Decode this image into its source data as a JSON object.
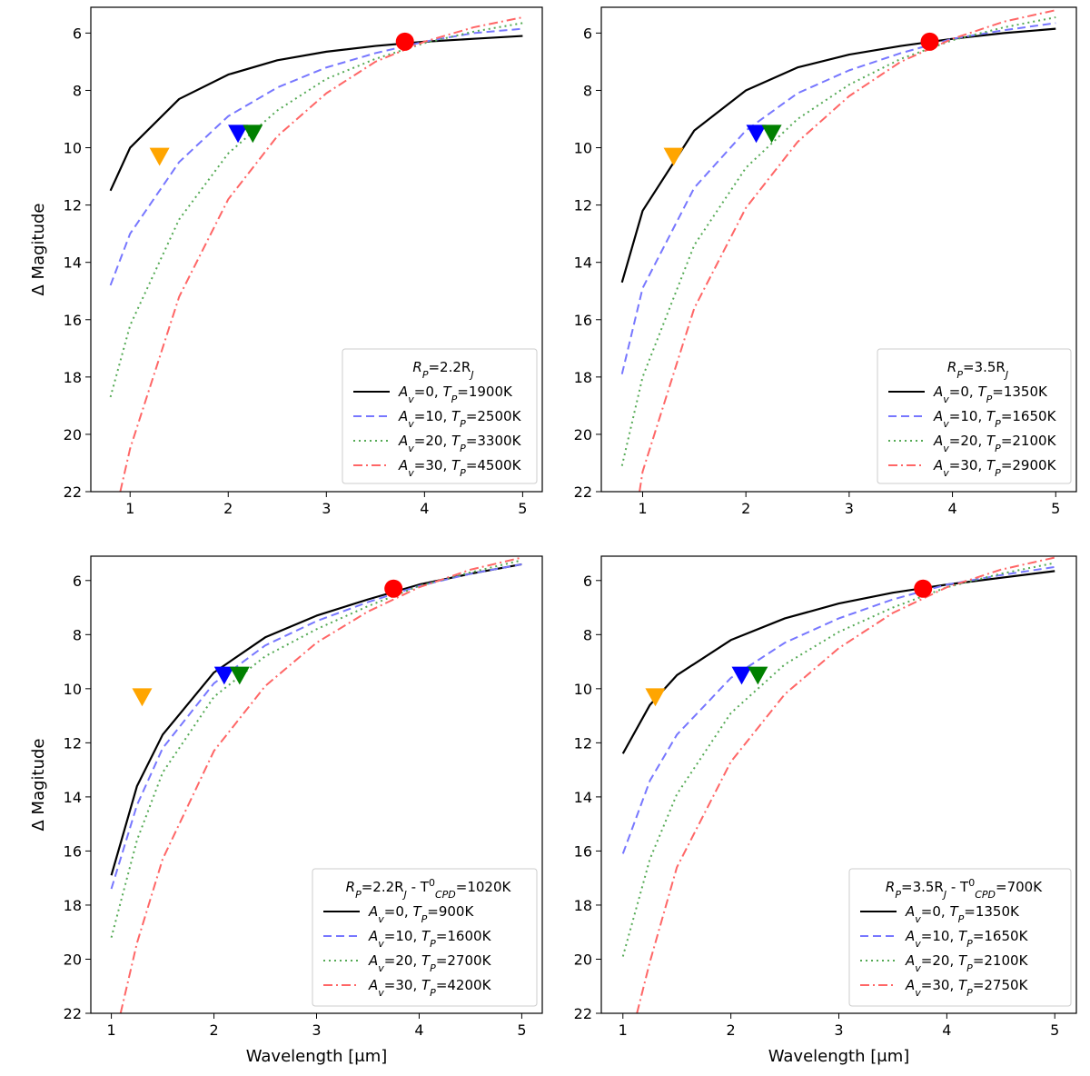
{
  "chart_data": [
    {
      "type": "line",
      "xlabel": "",
      "ylabel": "Δ Magitude",
      "xlim": [
        0.6,
        5.2
      ],
      "ylim": [
        22,
        5.1
      ],
      "xticks": [
        1,
        2,
        3,
        4,
        5
      ],
      "yticks": [
        6,
        8,
        10,
        12,
        14,
        16,
        18,
        20,
        22
      ],
      "legend_title": {
        "base": "R",
        "sub": "P",
        "mid": "=2.2R",
        "sub2": "J",
        "tail": ""
      },
      "series": [
        {
          "name": "Av=0, TP=1900K",
          "av": "0",
          "tp": "1900",
          "color": "#000000",
          "style": "solid",
          "x": [
            0.8,
            1.0,
            1.5,
            2.0,
            2.5,
            3.0,
            3.5,
            4.0,
            4.5,
            5.0
          ],
          "y": [
            11.5,
            10.0,
            8.3,
            7.45,
            6.95,
            6.65,
            6.45,
            6.3,
            6.2,
            6.1
          ]
        },
        {
          "name": "Av=10, TP=2500K",
          "av": "10",
          "tp": "2500",
          "color": "#7777ff",
          "style": "dashed",
          "x": [
            0.8,
            1.0,
            1.5,
            2.0,
            2.5,
            3.0,
            3.5,
            4.0,
            4.5,
            5.0
          ],
          "y": [
            14.8,
            13.0,
            10.5,
            8.9,
            7.9,
            7.2,
            6.7,
            6.3,
            6.0,
            5.85
          ]
        },
        {
          "name": "Av=20, TP=3300K",
          "av": "20",
          "tp": "3300",
          "color": "#55aa55",
          "style": "dotted",
          "x": [
            0.8,
            1.0,
            1.5,
            2.0,
            2.5,
            3.0,
            3.5,
            4.0,
            4.5,
            5.0
          ],
          "y": [
            18.7,
            16.2,
            12.5,
            10.2,
            8.7,
            7.6,
            6.9,
            6.35,
            5.95,
            5.65
          ]
        },
        {
          "name": "Av=30, TP=4500K",
          "av": "30",
          "tp": "4500",
          "color": "#ff6666",
          "style": "dashdot",
          "x": [
            0.9,
            1.0,
            1.5,
            2.0,
            2.5,
            3.0,
            3.5,
            4.0,
            4.5,
            5.0
          ],
          "y": [
            22.0,
            20.5,
            15.2,
            11.8,
            9.6,
            8.1,
            7.0,
            6.3,
            5.8,
            5.45
          ]
        }
      ],
      "markers": [
        {
          "name": "orange-upper-limit",
          "shape": "triangle-down",
          "x": 1.3,
          "y": 10.3,
          "color": "#ffa500"
        },
        {
          "name": "blue-upper-limit",
          "shape": "triangle-down",
          "x": 2.1,
          "y": 9.5,
          "color": "#0000ff"
        },
        {
          "name": "green-upper-limit",
          "shape": "triangle-down",
          "x": 2.25,
          "y": 9.5,
          "color": "#008000"
        },
        {
          "name": "red-detection",
          "shape": "circle",
          "x": 3.8,
          "y": 6.3,
          "color": "#ff0000"
        }
      ]
    },
    {
      "type": "line",
      "xlabel": "",
      "ylabel": "",
      "xlim": [
        0.6,
        5.2
      ],
      "ylim": [
        22,
        5.1
      ],
      "xticks": [
        1,
        2,
        3,
        4,
        5
      ],
      "yticks": [
        6,
        8,
        10,
        12,
        14,
        16,
        18,
        20,
        22
      ],
      "legend_title": {
        "base": "R",
        "sub": "P",
        "mid": "=3.5R",
        "sub2": "J",
        "tail": ""
      },
      "series": [
        {
          "name": "Av=0, TP=1350K",
          "av": "0",
          "tp": "1350",
          "color": "#000000",
          "style": "solid",
          "x": [
            0.8,
            1.0,
            1.5,
            2.0,
            2.5,
            3.0,
            3.5,
            4.0,
            4.5,
            5.0
          ],
          "y": [
            14.7,
            12.2,
            9.4,
            8.0,
            7.2,
            6.75,
            6.45,
            6.2,
            6.0,
            5.85
          ]
        },
        {
          "name": "Av=10, TP=1650K",
          "av": "10",
          "tp": "1650",
          "color": "#7777ff",
          "style": "dashed",
          "x": [
            0.8,
            1.0,
            1.5,
            2.0,
            2.5,
            3.0,
            3.5,
            4.0,
            4.5,
            5.0
          ],
          "y": [
            17.9,
            14.9,
            11.4,
            9.4,
            8.1,
            7.3,
            6.7,
            6.2,
            5.9,
            5.65
          ]
        },
        {
          "name": "Av=20, TP=2100K",
          "av": "20",
          "tp": "2100",
          "color": "#55aa55",
          "style": "dotted",
          "x": [
            0.8,
            1.0,
            1.5,
            2.0,
            2.5,
            3.0,
            3.5,
            4.0,
            4.5,
            5.0
          ],
          "y": [
            21.1,
            18.0,
            13.4,
            10.7,
            9.0,
            7.8,
            6.9,
            6.25,
            5.8,
            5.45
          ]
        },
        {
          "name": "Av=30, TP=2900K",
          "av": "30",
          "tp": "2900",
          "color": "#ff6666",
          "style": "dashdot",
          "x": [
            0.97,
            1.0,
            1.5,
            2.0,
            2.5,
            3.0,
            3.5,
            4.0,
            4.5,
            5.0
          ],
          "y": [
            22.0,
            21.3,
            15.6,
            12.1,
            9.8,
            8.2,
            7.0,
            6.2,
            5.6,
            5.2
          ]
        }
      ],
      "markers": [
        {
          "name": "orange-upper-limit",
          "shape": "triangle-down",
          "x": 1.3,
          "y": 10.3,
          "color": "#ffa500"
        },
        {
          "name": "blue-upper-limit",
          "shape": "triangle-down",
          "x": 2.1,
          "y": 9.5,
          "color": "#0000ff"
        },
        {
          "name": "green-upper-limit",
          "shape": "triangle-down",
          "x": 2.25,
          "y": 9.5,
          "color": "#008000"
        },
        {
          "name": "red-detection",
          "shape": "circle",
          "x": 3.78,
          "y": 6.3,
          "color": "#ff0000"
        }
      ]
    },
    {
      "type": "line",
      "xlabel": "Wavelength [μm]",
      "ylabel": "Δ Magitude",
      "xlim": [
        0.8,
        5.2
      ],
      "ylim": [
        22,
        5.1
      ],
      "xticks": [
        1,
        2,
        3,
        4,
        5
      ],
      "yticks": [
        6,
        8,
        10,
        12,
        14,
        16,
        18,
        20,
        22
      ],
      "legend_title": {
        "base": "R",
        "sub": "P",
        "mid": "=2.2R",
        "sub2": "J",
        "tail": " - T",
        "sup3": "0",
        "sub3": "CPD",
        "end": "=1020K"
      },
      "series": [
        {
          "name": "Av=0, TP=900K",
          "av": "0",
          "tp": "900",
          "color": "#000000",
          "style": "solid",
          "x": [
            1.0,
            1.25,
            1.5,
            2.0,
            2.5,
            3.0,
            3.5,
            4.0,
            4.5,
            5.0
          ],
          "y": [
            16.9,
            13.6,
            11.7,
            9.4,
            8.1,
            7.3,
            6.7,
            6.15,
            5.75,
            5.4
          ]
        },
        {
          "name": "Av=10, TP=1600K",
          "av": "10",
          "tp": "1600",
          "color": "#7777ff",
          "style": "dashed",
          "x": [
            1.0,
            1.25,
            1.5,
            2.0,
            2.5,
            3.0,
            3.5,
            4.0,
            4.5,
            5.0
          ],
          "y": [
            17.4,
            14.3,
            12.2,
            9.8,
            8.4,
            7.5,
            6.8,
            6.2,
            5.75,
            5.4
          ]
        },
        {
          "name": "Av=20, TP=2700K",
          "av": "20",
          "tp": "2700",
          "color": "#55aa55",
          "style": "dotted",
          "x": [
            1.0,
            1.25,
            1.5,
            2.0,
            2.5,
            3.0,
            3.5,
            4.0,
            4.5,
            5.0
          ],
          "y": [
            19.2,
            15.6,
            13.1,
            10.3,
            8.8,
            7.8,
            6.95,
            6.2,
            5.7,
            5.25
          ]
        },
        {
          "name": "Av=30, TP=4200K",
          "av": "30",
          "tp": "4200",
          "color": "#ff6666",
          "style": "dashdot",
          "x": [
            1.09,
            1.25,
            1.5,
            2.0,
            2.5,
            3.0,
            3.5,
            4.0,
            4.5,
            5.0
          ],
          "y": [
            22.0,
            19.4,
            16.3,
            12.3,
            9.9,
            8.3,
            7.15,
            6.25,
            5.6,
            5.15
          ]
        }
      ],
      "markers": [
        {
          "name": "orange-upper-limit",
          "shape": "triangle-down",
          "x": 1.3,
          "y": 10.3,
          "color": "#ffa500"
        },
        {
          "name": "blue-upper-limit",
          "shape": "triangle-down",
          "x": 2.1,
          "y": 9.5,
          "color": "#0000ff"
        },
        {
          "name": "green-upper-limit",
          "shape": "triangle-down",
          "x": 2.25,
          "y": 9.5,
          "color": "#008000"
        },
        {
          "name": "red-detection",
          "shape": "circle",
          "x": 3.75,
          "y": 6.3,
          "color": "#ff0000"
        }
      ]
    },
    {
      "type": "line",
      "xlabel": "Wavelength [μm]",
      "ylabel": "",
      "xlim": [
        0.8,
        5.2
      ],
      "ylim": [
        22,
        5.1
      ],
      "xticks": [
        1,
        2,
        3,
        4,
        5
      ],
      "yticks": [
        6,
        8,
        10,
        12,
        14,
        16,
        18,
        20,
        22
      ],
      "legend_title": {
        "base": "R",
        "sub": "P",
        "mid": "=3.5R",
        "sub2": "J",
        "tail": " - T",
        "sup3": "0",
        "sub3": "CPD",
        "end": "=700K"
      },
      "series": [
        {
          "name": "Av=0, TP=1350K",
          "av": "0",
          "tp": "1350",
          "color": "#000000",
          "style": "solid",
          "x": [
            1.0,
            1.25,
            1.5,
            2.0,
            2.5,
            3.0,
            3.5,
            4.0,
            4.5,
            5.0
          ],
          "y": [
            12.4,
            10.6,
            9.5,
            8.2,
            7.4,
            6.85,
            6.45,
            6.15,
            5.9,
            5.65
          ]
        },
        {
          "name": "Av=10, TP=1650K",
          "av": "10",
          "tp": "1650",
          "color": "#7777ff",
          "style": "dashed",
          "x": [
            1.0,
            1.25,
            1.5,
            2.0,
            2.5,
            3.0,
            3.5,
            4.0,
            4.5,
            5.0
          ],
          "y": [
            16.1,
            13.4,
            11.7,
            9.6,
            8.3,
            7.4,
            6.7,
            6.15,
            5.8,
            5.5
          ]
        },
        {
          "name": "Av=20, TP=2100K",
          "av": "20",
          "tp": "2100",
          "color": "#55aa55",
          "style": "dotted",
          "x": [
            1.0,
            1.25,
            1.5,
            2.0,
            2.5,
            3.0,
            3.5,
            4.0,
            4.5,
            5.0
          ],
          "y": [
            19.9,
            16.3,
            13.9,
            10.9,
            9.1,
            7.9,
            7.0,
            6.25,
            5.75,
            5.35
          ]
        },
        {
          "name": "Av=30, TP=2750K",
          "av": "30",
          "tp": "2750",
          "color": "#ff6666",
          "style": "dashdot",
          "x": [
            1.13,
            1.25,
            1.5,
            2.0,
            2.5,
            3.0,
            3.5,
            4.0,
            4.5,
            5.0
          ],
          "y": [
            22.0,
            20.1,
            16.6,
            12.7,
            10.2,
            8.5,
            7.2,
            6.25,
            5.6,
            5.15
          ]
        }
      ],
      "markers": [
        {
          "name": "orange-upper-limit",
          "shape": "triangle-down",
          "x": 1.3,
          "y": 10.3,
          "color": "#ffa500"
        },
        {
          "name": "blue-upper-limit",
          "shape": "triangle-down",
          "x": 2.1,
          "y": 9.5,
          "color": "#0000ff"
        },
        {
          "name": "green-upper-limit",
          "shape": "triangle-down",
          "x": 2.25,
          "y": 9.5,
          "color": "#008000"
        },
        {
          "name": "red-detection",
          "shape": "circle",
          "x": 3.78,
          "y": 6.3,
          "color": "#ff0000"
        }
      ]
    }
  ]
}
